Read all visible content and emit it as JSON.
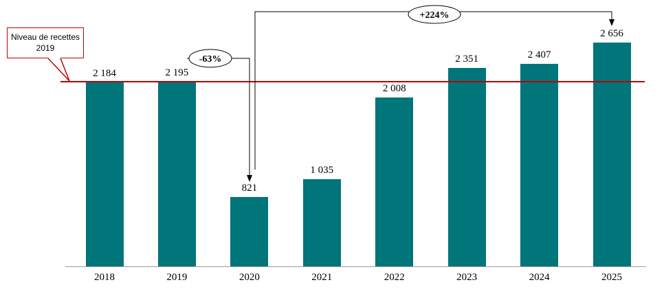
{
  "chart_data": {
    "type": "bar",
    "categories": [
      "2018",
      "2019",
      "2020",
      "2021",
      "2022",
      "2023",
      "2024",
      "2025"
    ],
    "values": [
      2184,
      2195,
      821,
      1035,
      2008,
      2351,
      2407,
      2656
    ],
    "value_labels": [
      "2 184",
      "2 195",
      "821",
      "1 035",
      "2 008",
      "2 351",
      "2 407",
      "2 656"
    ],
    "title": "",
    "xlabel": "",
    "ylabel": "",
    "ylim": [
      0,
      2656
    ],
    "grid": "off",
    "legend": "none",
    "bar_color": "#00757a",
    "reference_line": {
      "value": 2195,
      "color": "#c00000",
      "callout_label": "Niveau de recettes 2019"
    },
    "annotations": [
      {
        "label": "-63%",
        "from_category": "2019",
        "to_category": "2020"
      },
      {
        "label": "+224%",
        "from_category": "2020",
        "to_category": "2025"
      }
    ]
  }
}
